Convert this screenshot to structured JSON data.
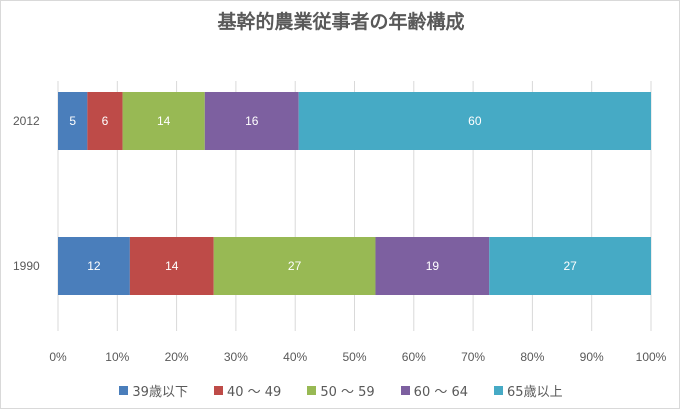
{
  "chart_data": {
    "type": "bar",
    "orientation": "horizontal",
    "stacked": "percent",
    "title": "基幹的農業従事者の年齢構成",
    "categories": [
      "2012",
      "1990"
    ],
    "series": [
      {
        "name": "39歳以下",
        "color": "#4a7ebb",
        "values": [
          5,
          12
        ]
      },
      {
        "name": "40 ～ 49",
        "color": "#be4b48",
        "values": [
          6,
          14
        ]
      },
      {
        "name": "50 ～ 59",
        "color": "#98b954",
        "values": [
          14,
          27
        ]
      },
      {
        "name": "60 ～ 64",
        "color": "#7d60a0",
        "values": [
          16,
          19
        ]
      },
      {
        "name": "65歳以上",
        "color": "#46aac5",
        "values": [
          60,
          27
        ]
      }
    ],
    "x_ticks": [
      "0%",
      "10%",
      "20%",
      "30%",
      "40%",
      "50%",
      "60%",
      "70%",
      "80%",
      "90%",
      "100%"
    ],
    "xlim": [
      0,
      100
    ],
    "grid": true,
    "legend_position": "bottom"
  }
}
